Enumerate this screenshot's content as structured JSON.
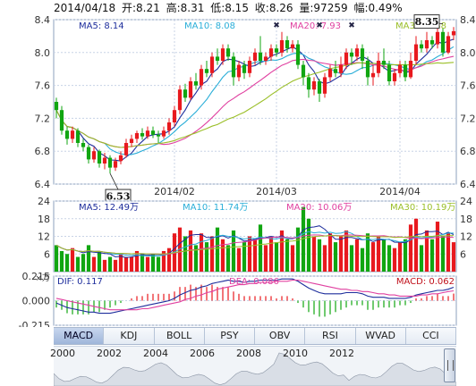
{
  "header": {
    "date": "2014/04/18",
    "open_label": "开:",
    "open": "8.21",
    "high_label": "高:",
    "high": "8.31",
    "low_label": "低:",
    "low": "8.15",
    "close_label": "收:",
    "close": "8.26",
    "volume_label": "量:",
    "volume": "97259",
    "change_label": "幅:",
    "change": "0.49%"
  },
  "tabs": [
    "MACD",
    "KDJ",
    "BOLL",
    "PSY",
    "OBV",
    "RSI",
    "WVAD",
    "CCI"
  ],
  "active_tab": "MACD",
  "navigator_years": [
    "2000",
    "2002",
    "2004",
    "2006",
    "2008",
    "2010",
    "2012"
  ],
  "colors": {
    "up": "#e8191e",
    "down": "#11a611",
    "ma5": "#1e2e9c",
    "ma10": "#2aaed8",
    "ma20": "#e040a0",
    "ma30": "#9bbf28",
    "grid": "#c8d3e6",
    "axis": "#333333"
  },
  "chart_data": [
    {
      "type": "candlestick",
      "legend": [
        {
          "name": "MA5",
          "value": "8.14",
          "color": "#1e2e9c"
        },
        {
          "name": "MA10",
          "value": "8.08",
          "color": "#2aaed8"
        },
        {
          "name": "MA20",
          "value": "7.93",
          "color": "#e040a0"
        },
        {
          "name": "MA30",
          "value": "7.88",
          "color": "#9bbf28"
        }
      ],
      "ylim": [
        6.4,
        8.4
      ],
      "yticks": [
        "8.4",
        "8.0",
        "7.6",
        "7.2",
        "6.8",
        "6.4"
      ],
      "xticks": [
        {
          "label": "2014/02",
          "index": 22
        },
        {
          "label": "2014/03",
          "index": 41
        },
        {
          "label": "2014/04",
          "index": 64
        }
      ],
      "annotations": [
        {
          "label": "6.53",
          "index": 10,
          "value": 6.53
        },
        {
          "label": "8.35",
          "index": 72,
          "value": 8.35
        }
      ],
      "candles": [
        [
          7.4,
          7.3,
          7.45,
          7.2
        ],
        [
          7.3,
          7.05,
          7.35,
          7.0
        ],
        [
          7.05,
          6.95,
          7.1,
          6.88
        ],
        [
          6.95,
          7.05,
          7.1,
          6.9
        ],
        [
          7.05,
          6.9,
          7.08,
          6.85
        ],
        [
          6.9,
          6.85,
          6.95,
          6.8
        ],
        [
          6.85,
          6.7,
          6.88,
          6.65
        ],
        [
          6.7,
          6.8,
          6.85,
          6.66
        ],
        [
          6.8,
          6.65,
          6.82,
          6.6
        ],
        [
          6.65,
          6.72,
          6.78,
          6.58
        ],
        [
          6.72,
          6.6,
          6.75,
          6.53
        ],
        [
          6.6,
          6.68,
          6.72,
          6.56
        ],
        [
          6.68,
          6.75,
          6.8,
          6.64
        ],
        [
          6.75,
          6.9,
          6.95,
          6.72
        ],
        [
          6.9,
          6.95,
          7.0,
          6.85
        ],
        [
          6.95,
          7.02,
          7.05,
          6.9
        ],
        [
          7.02,
          6.98,
          7.08,
          6.94
        ],
        [
          6.98,
          7.05,
          7.1,
          6.95
        ],
        [
          7.05,
          7.0,
          7.1,
          6.96
        ],
        [
          7.0,
          6.98,
          7.05,
          6.9
        ],
        [
          6.98,
          7.05,
          7.1,
          6.95
        ],
        [
          7.05,
          7.15,
          7.2,
          7.0
        ],
        [
          7.15,
          7.3,
          7.35,
          7.1
        ],
        [
          7.3,
          7.55,
          7.6,
          7.25
        ],
        [
          7.55,
          7.45,
          7.62,
          7.4
        ],
        [
          7.45,
          7.65,
          7.7,
          7.42
        ],
        [
          7.65,
          7.6,
          7.75,
          7.55
        ],
        [
          7.6,
          7.8,
          7.85,
          7.55
        ],
        [
          7.8,
          7.75,
          7.9,
          7.7
        ],
        [
          7.75,
          7.95,
          8.0,
          7.7
        ],
        [
          7.95,
          7.9,
          8.05,
          7.85
        ],
        [
          7.9,
          8.05,
          8.1,
          7.85
        ],
        [
          8.05,
          7.95,
          8.1,
          7.9
        ],
        [
          7.95,
          7.7,
          8.0,
          7.6
        ],
        [
          7.7,
          7.85,
          7.9,
          7.65
        ],
        [
          7.85,
          7.75,
          7.9,
          7.68
        ],
        [
          7.75,
          7.9,
          7.95,
          7.7
        ],
        [
          7.9,
          8.0,
          8.05,
          7.85
        ],
        [
          8.0,
          7.9,
          8.2,
          7.85
        ],
        [
          7.9,
          7.95,
          8.0,
          7.85
        ],
        [
          7.95,
          8.05,
          8.1,
          7.9
        ],
        [
          8.05,
          8.0,
          8.1,
          7.95
        ],
        [
          8.0,
          8.15,
          8.25,
          7.95
        ],
        [
          8.15,
          8.05,
          8.2,
          8.0
        ],
        [
          8.05,
          8.1,
          8.15,
          8.0
        ],
        [
          8.1,
          7.85,
          8.15,
          7.8
        ],
        [
          7.85,
          7.7,
          7.9,
          7.6
        ],
        [
          7.7,
          7.55,
          7.75,
          7.45
        ],
        [
          7.55,
          7.65,
          7.7,
          7.48
        ],
        [
          7.65,
          7.5,
          7.68,
          7.4
        ],
        [
          7.5,
          7.7,
          7.75,
          7.45
        ],
        [
          7.7,
          7.8,
          7.85,
          7.65
        ],
        [
          7.8,
          7.75,
          7.9,
          7.7
        ],
        [
          7.75,
          7.85,
          7.95,
          7.7
        ],
        [
          7.85,
          8.0,
          8.05,
          7.8
        ],
        [
          8.0,
          7.95,
          8.05,
          7.85
        ],
        [
          7.95,
          8.05,
          8.1,
          7.9
        ],
        [
          8.05,
          7.9,
          8.1,
          7.8
        ],
        [
          7.9,
          7.7,
          7.95,
          7.6
        ],
        [
          7.7,
          7.75,
          7.85,
          7.6
        ],
        [
          7.75,
          7.9,
          8.0,
          7.7
        ],
        [
          7.9,
          7.85,
          8.05,
          7.8
        ],
        [
          7.85,
          7.65,
          7.9,
          7.6
        ],
        [
          7.65,
          7.75,
          7.8,
          7.6
        ],
        [
          7.75,
          7.85,
          7.9,
          7.7
        ],
        [
          7.85,
          7.7,
          7.9,
          7.65
        ],
        [
          7.7,
          7.9,
          8.0,
          7.68
        ],
        [
          7.9,
          8.1,
          8.2,
          7.85
        ],
        [
          8.1,
          8.05,
          8.15,
          8.0
        ],
        [
          8.05,
          8.15,
          8.25,
          8.0
        ],
        [
          8.15,
          8.1,
          8.2,
          8.05
        ],
        [
          8.1,
          8.25,
          8.35,
          8.05
        ],
        [
          8.25,
          8.0,
          8.3,
          7.95
        ],
        [
          8.0,
          8.2,
          8.25,
          7.98
        ],
        [
          8.21,
          8.26,
          8.31,
          8.15
        ]
      ]
    },
    {
      "type": "bar",
      "unit_label": "万",
      "legend": [
        {
          "name": "MA5",
          "value": "12.49万",
          "color": "#1e2e9c"
        },
        {
          "name": "MA10",
          "value": "11.74万",
          "color": "#2aaed8"
        },
        {
          "name": "MA20",
          "value": "10.06万",
          "color": "#e040a0"
        },
        {
          "name": "MA30",
          "value": "10.19万",
          "color": "#9bbf28"
        }
      ],
      "ylim": [
        0,
        24
      ],
      "yticks": [
        "24",
        "18",
        "12",
        "6"
      ],
      "values": [
        9,
        7,
        6,
        8,
        5,
        6,
        9,
        5,
        7,
        4,
        5,
        4,
        6,
        5,
        5,
        7,
        6,
        5,
        6,
        5,
        7,
        8,
        13,
        15,
        12,
        14,
        9,
        13,
        10,
        12,
        15,
        11,
        9,
        14,
        8,
        10,
        12,
        11,
        16,
        9,
        12,
        10,
        14,
        11,
        9,
        15,
        22,
        18,
        12,
        11,
        9,
        13,
        10,
        12,
        14,
        9,
        11,
        8,
        13,
        10,
        12,
        11,
        9,
        8,
        10,
        11,
        16,
        18,
        9,
        14,
        11,
        17,
        12,
        13,
        10
      ]
    },
    {
      "type": "line",
      "title_left": "DIF: 0.117",
      "title_mid": "DEA: 0.086",
      "title_right": "MACD: 0.062",
      "ylim": [
        -0.215,
        0.215
      ],
      "yticks": [
        "0.215",
        "0.000",
        "-0.215"
      ],
      "series": [
        {
          "name": "DIF",
          "values": [
            -0.02,
            -0.04,
            -0.06,
            -0.07,
            -0.08,
            -0.09,
            -0.1,
            -0.1,
            -0.11,
            -0.11,
            -0.11,
            -0.1,
            -0.09,
            -0.08,
            -0.07,
            -0.06,
            -0.05,
            -0.04,
            -0.03,
            -0.02,
            -0.01,
            0.0,
            0.02,
            0.05,
            0.07,
            0.09,
            0.1,
            0.12,
            0.13,
            0.15,
            0.16,
            0.17,
            0.18,
            0.17,
            0.17,
            0.16,
            0.17,
            0.17,
            0.18,
            0.18,
            0.18,
            0.18,
            0.19,
            0.19,
            0.19,
            0.17,
            0.14,
            0.11,
            0.09,
            0.07,
            0.06,
            0.06,
            0.06,
            0.06,
            0.07,
            0.07,
            0.07,
            0.06,
            0.04,
            0.03,
            0.03,
            0.03,
            0.02,
            0.02,
            0.02,
            0.02,
            0.03,
            0.05,
            0.06,
            0.07,
            0.08,
            0.09,
            0.09,
            0.1,
            0.117
          ]
        },
        {
          "name": "DEA",
          "values": [
            0.02,
            0.01,
            0.0,
            -0.01,
            -0.02,
            -0.03,
            -0.04,
            -0.05,
            -0.06,
            -0.07,
            -0.08,
            -0.08,
            -0.08,
            -0.08,
            -0.08,
            -0.08,
            -0.07,
            -0.07,
            -0.06,
            -0.05,
            -0.04,
            -0.03,
            -0.02,
            -0.01,
            0.01,
            0.02,
            0.04,
            0.05,
            0.07,
            0.08,
            0.1,
            0.11,
            0.12,
            0.13,
            0.14,
            0.14,
            0.15,
            0.15,
            0.16,
            0.16,
            0.16,
            0.17,
            0.17,
            0.17,
            0.18,
            0.18,
            0.17,
            0.16,
            0.15,
            0.14,
            0.13,
            0.12,
            0.11,
            0.1,
            0.1,
            0.09,
            0.09,
            0.08,
            0.08,
            0.07,
            0.06,
            0.06,
            0.05,
            0.05,
            0.04,
            0.04,
            0.04,
            0.04,
            0.05,
            0.05,
            0.06,
            0.06,
            0.07,
            0.08,
            0.086
          ]
        },
        {
          "name": "MACD",
          "values": [
            -0.06,
            -0.08,
            -0.11,
            -0.12,
            -0.12,
            -0.12,
            -0.12,
            -0.1,
            -0.1,
            -0.08,
            -0.06,
            -0.04,
            -0.02,
            0.0,
            0.02,
            0.04,
            0.04,
            0.06,
            0.06,
            0.06,
            0.06,
            0.06,
            0.08,
            0.12,
            0.12,
            0.14,
            0.12,
            0.14,
            0.12,
            0.14,
            0.12,
            0.12,
            0.12,
            0.08,
            0.06,
            0.04,
            0.04,
            0.04,
            0.04,
            0.04,
            0.04,
            0.02,
            0.04,
            0.04,
            0.02,
            -0.02,
            -0.06,
            -0.1,
            -0.12,
            -0.14,
            -0.14,
            -0.12,
            -0.1,
            -0.08,
            -0.06,
            -0.04,
            -0.04,
            -0.04,
            -0.08,
            -0.08,
            -0.06,
            -0.06,
            -0.06,
            -0.06,
            -0.04,
            -0.04,
            -0.02,
            0.02,
            0.02,
            0.04,
            0.04,
            0.06,
            0.04,
            0.04,
            0.062
          ]
        }
      ]
    }
  ]
}
